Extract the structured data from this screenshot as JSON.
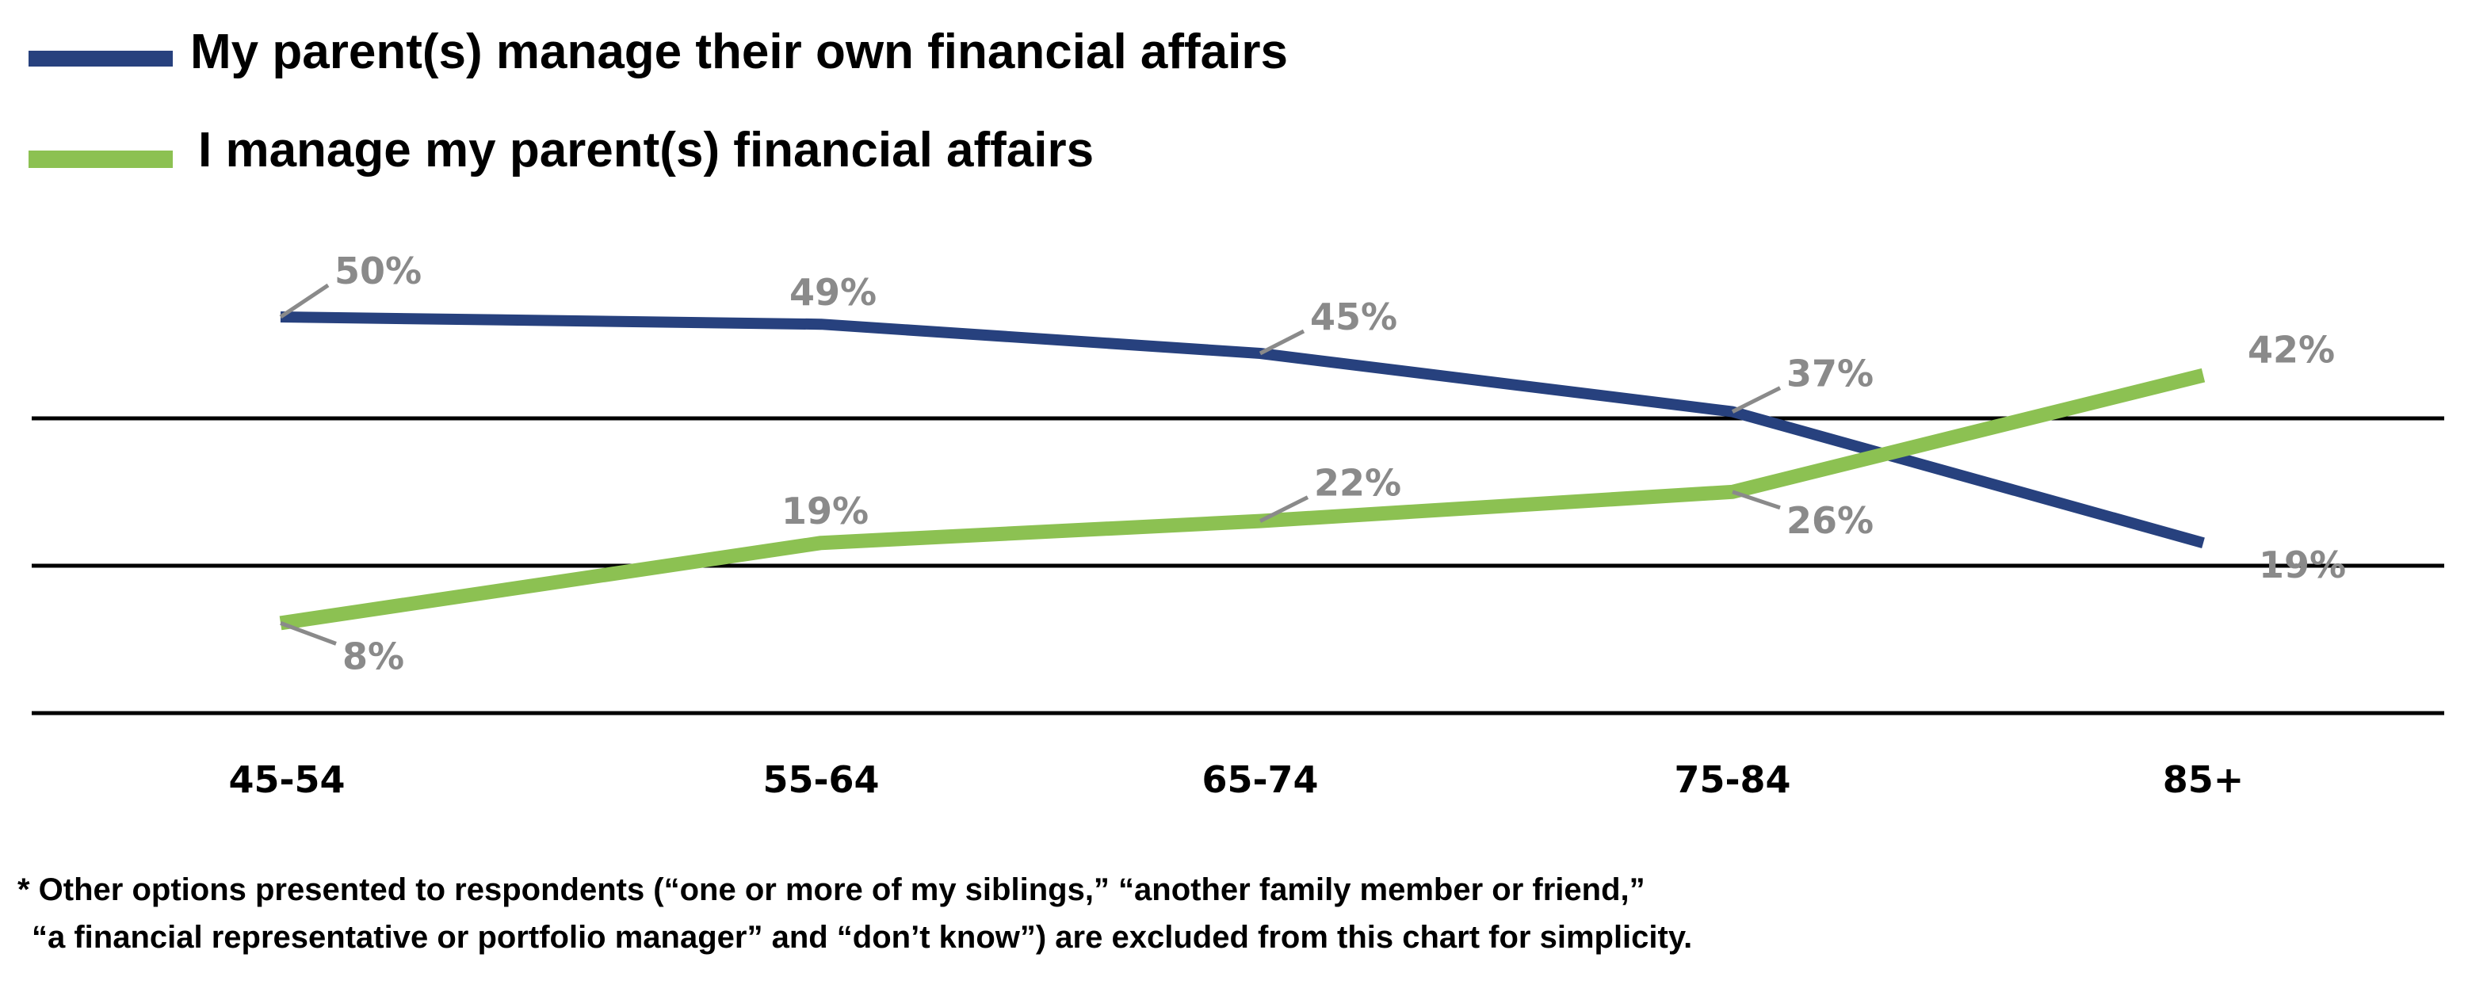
{
  "chart_data": {
    "type": "line",
    "categories": [
      "45-54",
      "55-64",
      "65-74",
      "75-84",
      "85+"
    ],
    "series": [
      {
        "name": "My parent(s) manage their own financial affairs",
        "values": [
          50,
          49,
          45,
          37,
          19
        ],
        "labels": [
          "50%",
          "49%",
          "45%",
          "37%",
          "19%"
        ],
        "color": "#27417e"
      },
      {
        "name": "I manage my parent(s) financial affairs",
        "values": [
          8,
          19,
          22,
          26,
          42
        ],
        "labels": [
          "8%",
          "19%",
          "22%",
          "26%",
          "42%"
        ],
        "color": "#8cc152"
      }
    ],
    "legend_position": "top-left",
    "grid": true,
    "y_axis_visible": false,
    "grid_color": "#000000",
    "label_color": "#8a8a8a"
  },
  "footnote": {
    "line1": "* Other options presented to respondents (“one or more of my siblings,” “another family member or friend,”",
    "line2": "“a financial representative or portfolio manager” and “don’t know”) are excluded from this chart for simplicity."
  }
}
